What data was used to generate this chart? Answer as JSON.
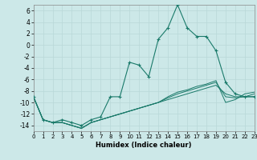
{
  "xlabel": "Humidex (Indice chaleur)",
  "background_color": "#cce8e8",
  "grid_color": "#b8d8d8",
  "line_color": "#1a7a6a",
  "xlim": [
    0,
    23
  ],
  "ylim": [
    -15,
    7
  ],
  "yticks": [
    6,
    4,
    2,
    0,
    -2,
    -4,
    -6,
    -8,
    -10,
    -12,
    -14
  ],
  "xticks": [
    0,
    1,
    2,
    3,
    4,
    5,
    6,
    7,
    8,
    9,
    10,
    11,
    12,
    13,
    14,
    15,
    16,
    17,
    18,
    19,
    20,
    21,
    22,
    23
  ],
  "series1_x": [
    0,
    1,
    2,
    3,
    4,
    5,
    6,
    7,
    8,
    9,
    10,
    11,
    12,
    13,
    14,
    15,
    16,
    17,
    18,
    19,
    20,
    21,
    22,
    23
  ],
  "series1_y": [
    -9,
    -13,
    -13.5,
    -13,
    -13.5,
    -14,
    -13,
    -12.5,
    -9,
    -9,
    -3,
    -3.5,
    -5.5,
    1,
    3,
    7,
    3,
    1.5,
    1.5,
    -1,
    -6.5,
    -8.5,
    -9,
    -9
  ],
  "series2_x": [
    0,
    1,
    2,
    3,
    4,
    5,
    6,
    7,
    8,
    9,
    10,
    11,
    12,
    13,
    14,
    15,
    16,
    17,
    18,
    19,
    20,
    21,
    22,
    23
  ],
  "series2_y": [
    -9,
    -13,
    -13.5,
    -13.5,
    -14,
    -14.5,
    -13.5,
    -13,
    -12.5,
    -12,
    -11.5,
    -11,
    -10.5,
    -10,
    -9.5,
    -9,
    -8.5,
    -8,
    -7.5,
    -7,
    -8.5,
    -9,
    -9,
    -9
  ],
  "series3_x": [
    0,
    1,
    2,
    3,
    4,
    5,
    6,
    7,
    8,
    9,
    10,
    11,
    12,
    13,
    14,
    15,
    16,
    17,
    18,
    19,
    20,
    21,
    22,
    23
  ],
  "series3_y": [
    -9,
    -13,
    -13.5,
    -13.5,
    -14,
    -14.5,
    -13.5,
    -13,
    -12.5,
    -12,
    -11.5,
    -11,
    -10.5,
    -10,
    -9.2,
    -8.5,
    -8,
    -7.5,
    -7,
    -6.5,
    -9,
    -9.2,
    -9,
    -8.5
  ],
  "series4_x": [
    0,
    1,
    2,
    3,
    4,
    5,
    6,
    7,
    8,
    9,
    10,
    11,
    12,
    13,
    14,
    15,
    16,
    17,
    18,
    19,
    20,
    21,
    22,
    23
  ],
  "series4_y": [
    -9,
    -13,
    -13.5,
    -13.5,
    -14,
    -14.5,
    -13.5,
    -13,
    -12.5,
    -12,
    -11.5,
    -11,
    -10.5,
    -10,
    -9.0,
    -8.2,
    -7.8,
    -7.2,
    -6.8,
    -6.2,
    -10,
    -9.5,
    -8.5,
    -8.2
  ]
}
